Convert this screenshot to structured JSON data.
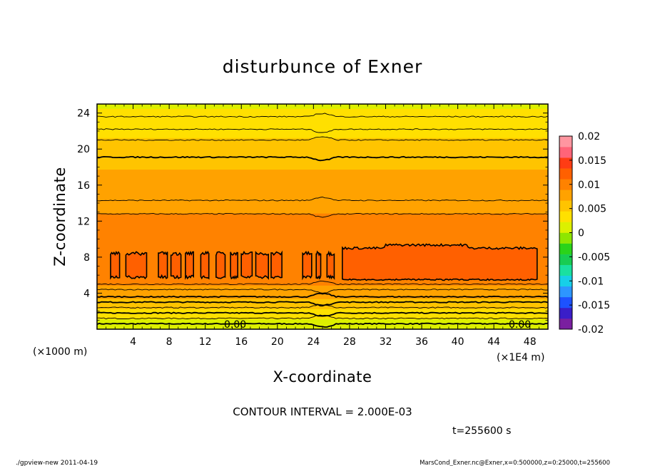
{
  "chart_data": {
    "type": "heatmap",
    "title": "disturbunce of Exner",
    "xlabel": "X-coordinate",
    "ylabel": "Z-coordinate",
    "x_unit": "(×1E4 m)",
    "y_unit": "(×1000 m)",
    "xlim": [
      0,
      50
    ],
    "ylim": [
      0,
      25
    ],
    "x_ticks": [
      "4",
      "8",
      "12",
      "16",
      "20",
      "24",
      "28",
      "32",
      "36",
      "40",
      "44",
      "48"
    ],
    "y_ticks": [
      "4",
      "8",
      "12",
      "16",
      "20",
      "24"
    ],
    "contour_interval_text": "CONTOUR INTERVAL = 2.000E-03",
    "time_text": "t=255600 s",
    "zero_contour_labels": [
      "0.00",
      "0.00"
    ],
    "colorbar": {
      "range": [
        -0.02,
        0.02
      ],
      "ticks": [
        "0.02",
        "0.015",
        "0.01",
        "0.005",
        "0",
        "-0.005",
        "-0.01",
        "-0.015",
        "-0.02"
      ],
      "colors": [
        "#7a1fa0",
        "#3a1ec8",
        "#1d52ff",
        "#2d96ff",
        "#17cfe8",
        "#1ae0a0",
        "#18cc52",
        "#2ad31a",
        "#8ee600",
        "#dcf000",
        "#ffe000",
        "#ffc400",
        "#ffa200",
        "#ff8200",
        "#ff6000",
        "#ff3c14",
        "#ff6478",
        "#ff96a0"
      ]
    },
    "profile": {
      "z": [
        0,
        1,
        2,
        3,
        4,
        5,
        6,
        8,
        10,
        12,
        14,
        16,
        18,
        19,
        20,
        22,
        23,
        24,
        25
      ],
      "value": [
        0.0,
        0.002,
        0.004,
        0.006,
        0.008,
        0.009,
        0.0105,
        0.0108,
        0.01,
        0.0092,
        0.0085,
        0.008,
        0.0065,
        0.006,
        0.0052,
        0.004,
        0.003,
        0.0025,
        0.002
      ]
    },
    "contour_levels_z": [
      0.6,
      1.2,
      1.8,
      2.4,
      3.0,
      3.6,
      4.4,
      5.0,
      12.8,
      14.3,
      19.1,
      21.0,
      22.2,
      23.6
    ],
    "bold_contour_levels_z": [
      0.6,
      1.8,
      3.0,
      3.6,
      19.1
    ],
    "closed_contour_regions": [
      [
        1.5,
        2.5
      ],
      [
        3.2,
        5.5
      ],
      [
        6.8,
        7.8
      ],
      [
        8.2,
        9.3
      ],
      [
        9.8,
        10.7
      ],
      [
        11.5,
        12.4
      ],
      [
        13.2,
        14.2
      ],
      [
        14.8,
        15.6
      ],
      [
        16.0,
        17.2
      ],
      [
        17.6,
        19.0
      ],
      [
        19.3,
        20.5
      ],
      [
        22.8,
        23.8
      ],
      [
        24.3,
        24.8
      ],
      [
        25.5,
        26.3
      ],
      [
        27.2,
        48.8
      ]
    ],
    "large_region_z": [
      5.5,
      9.0
    ],
    "small_region_z": [
      5.8,
      8.4
    ]
  },
  "footer": {
    "left": "./gpview-new 2011-04-19",
    "right": "MarsCond_Exner.nc@Exner,x=0:500000,z=0:25000,t=255600"
  }
}
